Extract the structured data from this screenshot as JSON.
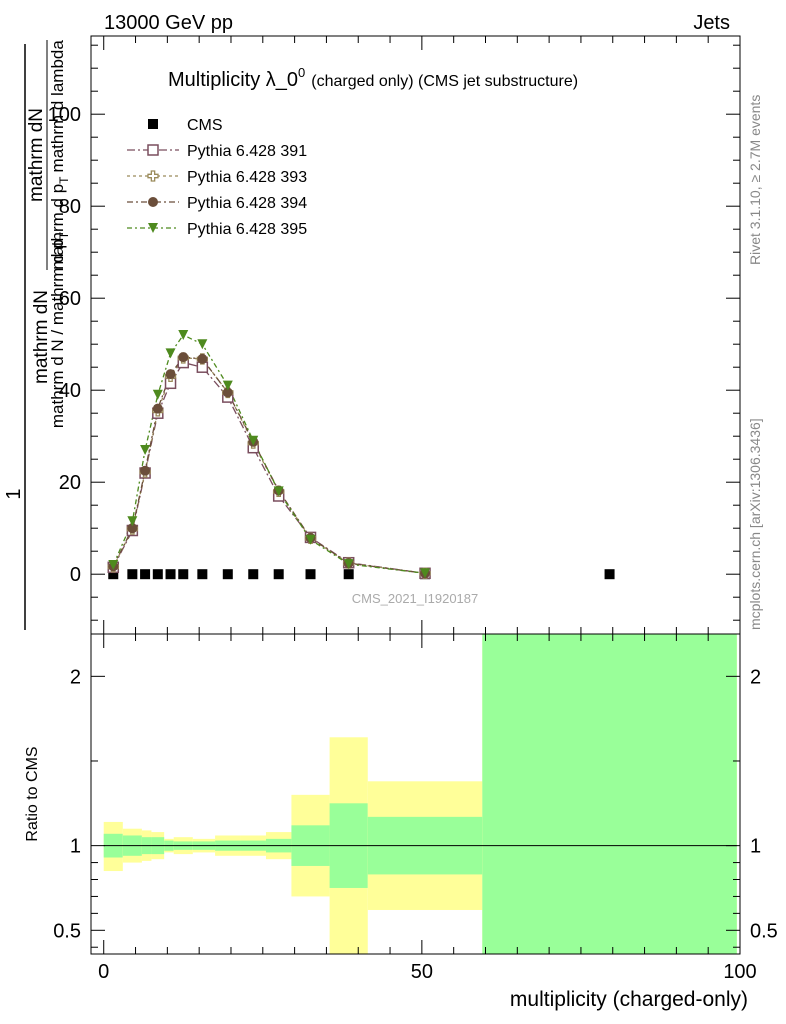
{
  "header": {
    "left": "13000 GeV pp",
    "right": "Jets"
  },
  "side_labels": {
    "rivet": "Rivet 3.1.10, ≥ 2.7M events",
    "mcplots": "mcplots.cern.ch [arXiv:1306.3436]"
  },
  "chart_data": [
    {
      "type": "scatter",
      "title_main": "Multiplicity λ_0",
      "title_sup": "0",
      "title_small": "(charged only) (CMS jet substructure)",
      "ylabel_top": "1",
      "ylabel_frac_num": "mathrm dN",
      "ylabel_frac_num2": "mathrm d p",
      "ylabel_frac_num3": "mathrm d lambda",
      "ylabel_bottom": "mathrm d N / mathrm d p",
      "ylabel_bottom2": "mathrm d p",
      "ylabel_bottom3": "mathrm d N",
      "sub_T": "T",
      "watermark": "CMS_2021_I1920187",
      "xlim": [
        -2,
        100
      ],
      "ylim": [
        -13,
        117
      ],
      "yticks": [
        0,
        20,
        40,
        60,
        80,
        100
      ],
      "legend_position": "top-left",
      "series": [
        {
          "name": "CMS",
          "marker": "filled-square",
          "color": "#000000",
          "x": [
            1.5,
            4.5,
            6.5,
            8.5,
            10.5,
            12.5,
            15.5,
            19.5,
            23.5,
            27.5,
            32.5,
            38.5,
            50.5,
            79.5
          ],
          "y": [
            0,
            0,
            0,
            0,
            0,
            0,
            0,
            0,
            0,
            0,
            0,
            0,
            0,
            0
          ]
        },
        {
          "name": "Pythia 6.428 391",
          "marker": "open-square",
          "color": "#7a4e5e",
          "dash": "8,3,2,3",
          "x": [
            1.5,
            4.5,
            6.5,
            8.5,
            10.5,
            12.5,
            15.5,
            19.5,
            23.5,
            27.5,
            32.5,
            38.5,
            50.5
          ],
          "y": [
            1.5,
            9.5,
            22,
            35,
            41.5,
            46,
            45,
            38.5,
            27.5,
            17,
            8,
            2.5,
            0.2
          ]
        },
        {
          "name": "Pythia 6.428 393",
          "marker": "open-cross",
          "color": "#9a8a5a",
          "dash": "3,3",
          "x": [
            1.5,
            4.5,
            6.5,
            8.5,
            10.5,
            12.5,
            15.5,
            19.5,
            23.5,
            27.5,
            32.5,
            38.5,
            50.5
          ],
          "y": [
            1.6,
            9.8,
            22.2,
            35.5,
            43,
            47,
            46.8,
            39.5,
            28.5,
            18,
            7.8,
            2.4,
            0.2
          ]
        },
        {
          "name": "Pythia 6.428 394",
          "marker": "filled-circle",
          "color": "#6b4e3a",
          "dash": "6,3,2,3",
          "x": [
            1.5,
            4.5,
            6.5,
            8.5,
            10.5,
            12.5,
            15.5,
            19.5,
            23.5,
            27.5,
            32.5,
            38.5,
            50.5
          ],
          "y": [
            1.7,
            10,
            22.5,
            36,
            43.5,
            47.2,
            46.8,
            39.5,
            28.8,
            18.2,
            7.9,
            2.4,
            0.2
          ]
        },
        {
          "name": "Pythia 6.428 395",
          "marker": "filled-triangle-down",
          "color": "#4e8a1e",
          "dash": "5,3,2,3",
          "x": [
            1.5,
            4.5,
            6.5,
            8.5,
            10.5,
            12.5,
            15.5,
            19.5,
            23.5,
            27.5,
            32.5,
            38.5,
            50.5
          ],
          "y": [
            2,
            11.5,
            27,
            39,
            48,
            52,
            50,
            41,
            29,
            18,
            7.5,
            2.2,
            0.2
          ]
        }
      ]
    },
    {
      "type": "area",
      "ylabel": "Ratio to CMS",
      "xlabel": "multiplicity (charged-only)",
      "xlim": [
        -2,
        100
      ],
      "ylim": [
        0.36,
        2.25
      ],
      "yticks": [
        0.5,
        1,
        2
      ],
      "ytick_labels": [
        "0.5",
        "1",
        "2"
      ],
      "xticks": [
        0,
        50,
        100
      ],
      "xtick_labels": [
        "0",
        "50",
        "100"
      ],
      "reference_line": 1,
      "band_colors": {
        "inner": "#99ff99",
        "outer": "#ffff99"
      },
      "bins": [
        {
          "lo": 0,
          "hi": 3,
          "in_lo": 0.93,
          "in_hi": 1.07,
          "out_lo": 0.85,
          "out_hi": 1.14
        },
        {
          "lo": 3,
          "hi": 6,
          "in_lo": 0.94,
          "in_hi": 1.06,
          "out_lo": 0.9,
          "out_hi": 1.1
        },
        {
          "lo": 6,
          "hi": 7.5,
          "in_lo": 0.95,
          "in_hi": 1.05,
          "out_lo": 0.91,
          "out_hi": 1.09
        },
        {
          "lo": 7.5,
          "hi": 9.5,
          "in_lo": 0.95,
          "in_hi": 1.05,
          "out_lo": 0.92,
          "out_hi": 1.08
        },
        {
          "lo": 9.5,
          "hi": 11,
          "in_lo": 0.97,
          "in_hi": 1.03,
          "out_lo": 0.96,
          "out_hi": 1.04
        },
        {
          "lo": 11,
          "hi": 14,
          "in_lo": 0.975,
          "in_hi": 1.025,
          "out_lo": 0.95,
          "out_hi": 1.05
        },
        {
          "lo": 14,
          "hi": 17.5,
          "in_lo": 0.975,
          "in_hi": 1.025,
          "out_lo": 0.96,
          "out_hi": 1.04
        },
        {
          "lo": 17.5,
          "hi": 21.5,
          "in_lo": 0.97,
          "in_hi": 1.03,
          "out_lo": 0.94,
          "out_hi": 1.06
        },
        {
          "lo": 21.5,
          "hi": 25.5,
          "in_lo": 0.97,
          "in_hi": 1.03,
          "out_lo": 0.94,
          "out_hi": 1.06
        },
        {
          "lo": 25.5,
          "hi": 29.5,
          "in_lo": 0.96,
          "in_hi": 1.04,
          "out_lo": 0.92,
          "out_hi": 1.08
        },
        {
          "lo": 29.5,
          "hi": 35.5,
          "in_lo": 0.88,
          "in_hi": 1.12,
          "out_lo": 0.7,
          "out_hi": 1.3
        },
        {
          "lo": 35.5,
          "hi": 41.5,
          "in_lo": 0.75,
          "in_hi": 1.25,
          "out_lo": 0.36,
          "out_hi": 1.64
        },
        {
          "lo": 41.5,
          "hi": 59.5,
          "in_lo": 0.83,
          "in_hi": 1.17,
          "out_lo": 0.62,
          "out_hi": 1.38
        },
        {
          "lo": 59.5,
          "hi": 99.5,
          "in_lo": 0.36,
          "in_hi": 2.25,
          "out_lo": 0.36,
          "out_hi": 2.25
        }
      ]
    }
  ]
}
